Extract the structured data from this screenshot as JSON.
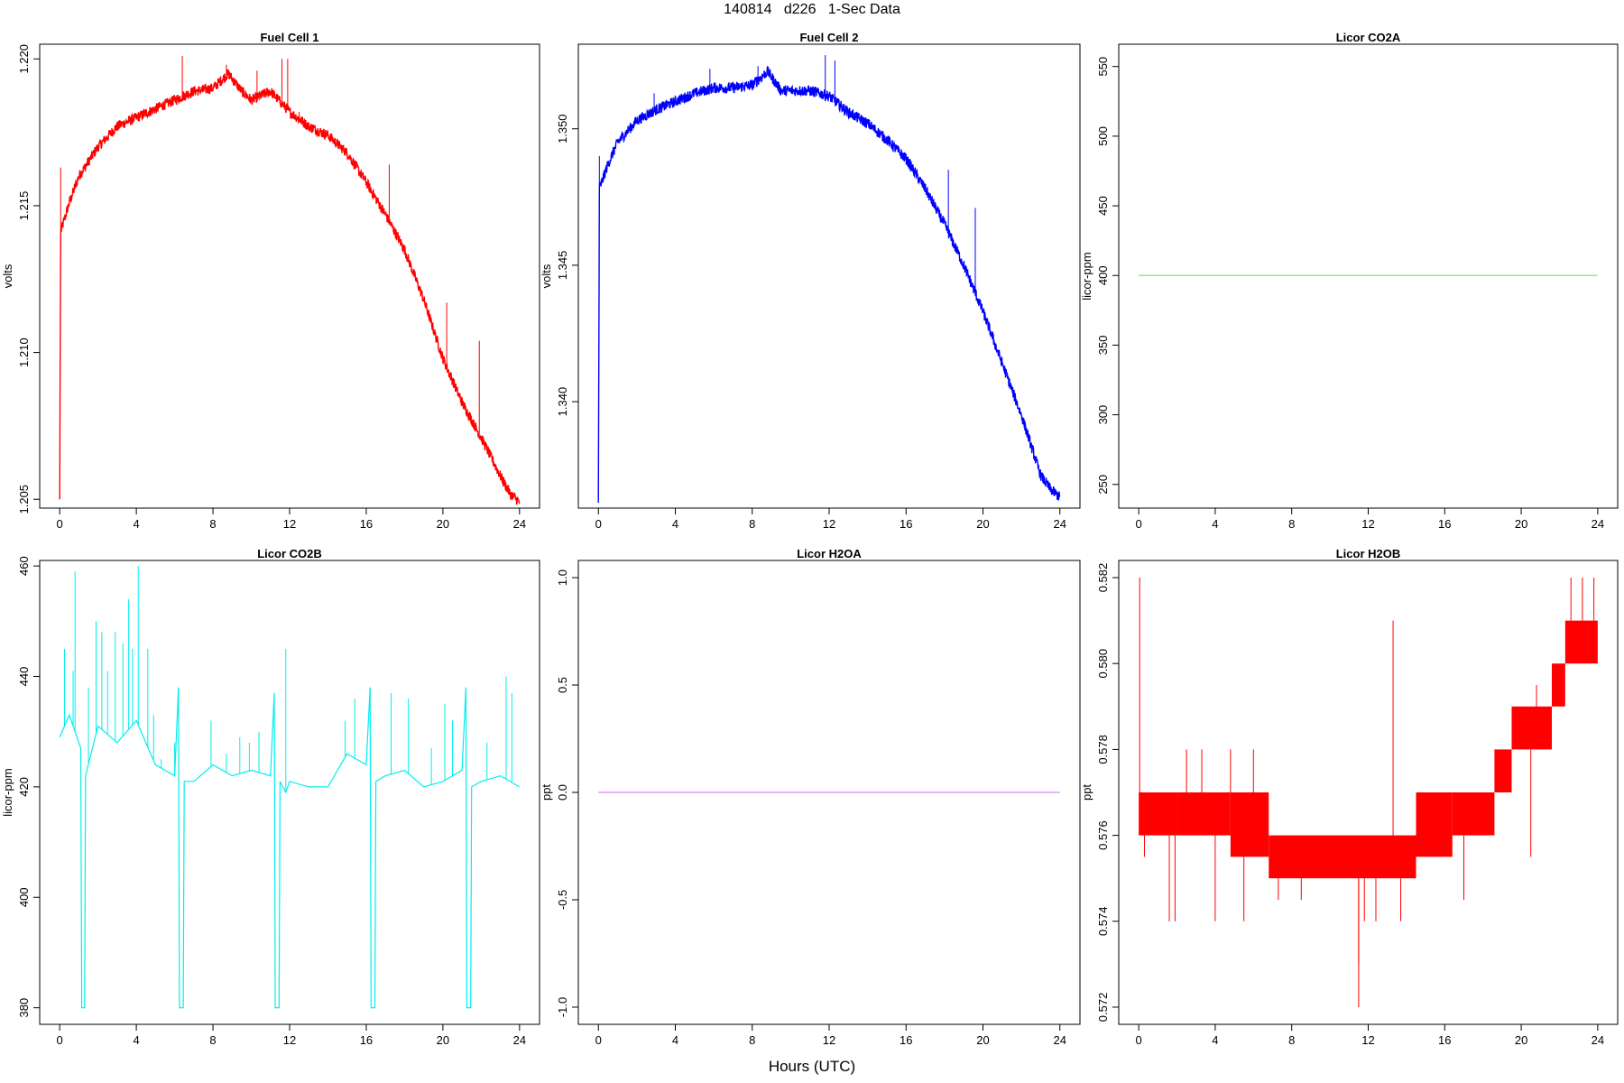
{
  "figure": {
    "title": "140814   d226   1-Sec Data",
    "xlabel": "Hours (UTC)"
  },
  "chart_data": [
    {
      "type": "line",
      "title": "Fuel Cell 1",
      "xlabel": "",
      "ylabel": "volts",
      "color": "#ff0000",
      "xlim": [
        0,
        24
      ],
      "ylim": [
        1.2047,
        1.2205
      ],
      "xticks": [
        0,
        4,
        8,
        12,
        16,
        20,
        24
      ],
      "yticks": [
        1.205,
        1.21,
        1.215,
        1.22
      ],
      "ytick_labels": [
        "1.205",
        "1.210",
        "1.215",
        "1.220"
      ],
      "noise": 0.00018,
      "spikes": [
        [
          0.0,
          1.205
        ],
        [
          0.05,
          1.2163
        ],
        [
          6.4,
          1.2201
        ],
        [
          8.7,
          1.2198
        ],
        [
          10.3,
          1.2196
        ],
        [
          11.6,
          1.22
        ],
        [
          11.9,
          1.22
        ],
        [
          12.5,
          1.2182
        ],
        [
          17.2,
          1.2164
        ],
        [
          20.2,
          1.2117
        ],
        [
          21.9,
          1.2104
        ]
      ],
      "x": [
        0,
        0.05,
        0.5,
        1,
        2,
        3,
        4,
        5,
        6,
        7,
        8,
        8.8,
        9.5,
        10,
        11,
        12,
        13,
        14,
        15,
        16,
        17,
        18,
        19,
        20,
        21,
        22,
        23,
        23.5,
        24
      ],
      "y": [
        1.205,
        1.2141,
        1.2151,
        1.216,
        1.217,
        1.2177,
        1.218,
        1.2183,
        1.2186,
        1.2189,
        1.219,
        1.2195,
        1.2189,
        1.2186,
        1.2189,
        1.2182,
        1.2177,
        1.2174,
        1.2168,
        1.2158,
        1.2147,
        1.2135,
        1.2118,
        1.2098,
        1.2083,
        1.2071,
        1.2058,
        1.2052,
        1.2049
      ]
    },
    {
      "type": "line",
      "title": "Fuel Cell 2",
      "xlabel": "",
      "ylabel": "volts",
      "color": "#0000ff",
      "xlim": [
        0,
        24
      ],
      "ylim": [
        1.3361,
        1.3531
      ],
      "xticks": [
        0,
        4,
        8,
        12,
        16,
        20,
        24
      ],
      "yticks": [
        1.34,
        1.345,
        1.35
      ],
      "ytick_labels": [
        "1.340",
        "1.345",
        "1.350"
      ],
      "noise": 0.0002,
      "spikes": [
        [
          0.0,
          1.3363
        ],
        [
          0.05,
          1.349
        ],
        [
          2.9,
          1.3513
        ],
        [
          5.8,
          1.3522
        ],
        [
          8.3,
          1.3523
        ],
        [
          11.8,
          1.3527
        ],
        [
          12.3,
          1.3525
        ],
        [
          18.2,
          1.3485
        ],
        [
          19.6,
          1.3471
        ]
      ],
      "x": [
        0,
        0.05,
        0.5,
        1,
        2,
        3,
        4,
        5,
        6,
        7,
        8,
        8.8,
        9.5,
        10,
        11,
        12,
        13,
        14,
        15,
        16,
        17,
        18,
        19,
        20,
        21,
        22,
        23,
        23.5,
        24
      ],
      "y": [
        1.3363,
        1.3478,
        1.3487,
        1.3495,
        1.3503,
        1.3507,
        1.351,
        1.3513,
        1.3515,
        1.3515,
        1.3516,
        1.3521,
        1.3514,
        1.3514,
        1.3514,
        1.3512,
        1.3506,
        1.3502,
        1.3496,
        1.3489,
        1.3478,
        1.3465,
        1.345,
        1.3433,
        1.3414,
        1.3395,
        1.3373,
        1.3368,
        1.3365
      ]
    },
    {
      "type": "line",
      "title": "Licor CO2A",
      "xlabel": "",
      "ylabel": "licor-ppm",
      "color": "#66ee66",
      "xlim": [
        0,
        24
      ],
      "ylim": [
        233,
        566
      ],
      "xticks": [
        0,
        4,
        8,
        12,
        16,
        20,
        24
      ],
      "yticks": [
        250,
        300,
        350,
        400,
        450,
        500,
        550
      ],
      "ytick_labels": [
        "250",
        "300",
        "350",
        "400",
        "450",
        "500",
        "550"
      ],
      "noise": 0,
      "spikes": [],
      "x": [
        0,
        24
      ],
      "y": [
        400,
        400
      ]
    },
    {
      "type": "line",
      "title": "Licor CO2B",
      "xlabel": "",
      "ylabel": "licor-ppm",
      "color": "#00eeee",
      "xlim": [
        0,
        24
      ],
      "ylim": [
        377,
        461
      ],
      "xticks": [
        0,
        4,
        8,
        12,
        16,
        20,
        24
      ],
      "yticks": [
        380,
        400,
        420,
        440,
        460
      ],
      "ytick_labels": [
        "380",
        "400",
        "420",
        "440",
        "460"
      ],
      "noise": 0,
      "spikes": [
        [
          0.25,
          445
        ],
        [
          0.7,
          441
        ],
        [
          0.8,
          459
        ],
        [
          1.5,
          438
        ],
        [
          1.9,
          450
        ],
        [
          2.2,
          448
        ],
        [
          2.5,
          441
        ],
        [
          2.9,
          448
        ],
        [
          3.3,
          446
        ],
        [
          3.6,
          454
        ],
        [
          3.8,
          445
        ],
        [
          4.1,
          460
        ],
        [
          4.6,
          445
        ],
        [
          4.9,
          433
        ],
        [
          5.3,
          425
        ],
        [
          6.0,
          428
        ],
        [
          7.9,
          432
        ],
        [
          8.7,
          426
        ],
        [
          9.4,
          429
        ],
        [
          9.9,
          428
        ],
        [
          10.4,
          430
        ],
        [
          11.8,
          445
        ],
        [
          14.9,
          432
        ],
        [
          15.4,
          436
        ],
        [
          16.2,
          436
        ],
        [
          17.3,
          437
        ],
        [
          18.2,
          436
        ],
        [
          19.4,
          427
        ],
        [
          20.1,
          435
        ],
        [
          20.5,
          432
        ],
        [
          22.3,
          428
        ],
        [
          23.3,
          440
        ],
        [
          23.6,
          437
        ]
      ],
      "x": [
        0,
        0.5,
        1.0,
        1.1,
        1.15,
        1.3,
        1.35,
        2.0,
        3.0,
        4.0,
        5.0,
        6.0,
        6.2,
        6.25,
        6.45,
        6.5,
        7.0,
        8.0,
        9.0,
        10.0,
        11.0,
        11.2,
        11.25,
        11.45,
        11.5,
        11.8,
        12.0,
        13.0,
        14.0,
        15.0,
        16.0,
        16.2,
        16.25,
        16.45,
        16.5,
        17.0,
        18.0,
        19.0,
        20.0,
        21.0,
        21.2,
        21.25,
        21.45,
        21.5,
        22.0,
        23.0,
        24.0
      ],
      "y": [
        429,
        433,
        428,
        427,
        380,
        380,
        422,
        431,
        428,
        432,
        424,
        422,
        438,
        380,
        380,
        421,
        421,
        424,
        422,
        423,
        422,
        437,
        380,
        380,
        421,
        419,
        421,
        420,
        420,
        426,
        424,
        438,
        380,
        380,
        421,
        422,
        423,
        420,
        421,
        423,
        438,
        380,
        380,
        420,
        421,
        422,
        420
      ]
    },
    {
      "type": "line",
      "title": "Licor H2OA",
      "xlabel": "",
      "ylabel": "ppt",
      "color": "#dd88ee",
      "xlim": [
        0,
        24
      ],
      "ylim": [
        -1.08,
        1.08
      ],
      "xticks": [
        0,
        4,
        8,
        12,
        16,
        20,
        24
      ],
      "yticks": [
        -1,
        -0.5,
        0,
        0.5,
        1
      ],
      "ytick_labels": [
        "-1.0",
        "-0.5",
        "0.0",
        "0.5",
        "1.0"
      ],
      "noise": 0,
      "spikes": [],
      "x": [
        0,
        24
      ],
      "y": [
        0,
        0
      ]
    },
    {
      "type": "area",
      "title": "Licor H2OB",
      "xlabel": "",
      "ylabel": "ppt",
      "color": "#ff0000",
      "xlim": [
        0,
        24
      ],
      "ylim": [
        0.5716,
        0.5824
      ],
      "xticks": [
        0,
        4,
        8,
        12,
        16,
        20,
        24
      ],
      "yticks": [
        0.572,
        0.574,
        0.576,
        0.578,
        0.58,
        0.582
      ],
      "ytick_labels": [
        "0.572",
        "0.574",
        "0.576",
        "0.578",
        "0.580",
        "0.582"
      ],
      "bands": [
        {
          "x0": 0.0,
          "x1": 2.0,
          "lo": 0.576,
          "hi": 0.577
        },
        {
          "x0": 2.0,
          "x1": 4.8,
          "lo": 0.576,
          "hi": 0.577
        },
        {
          "x0": 4.8,
          "x1": 6.8,
          "lo": 0.5755,
          "hi": 0.577
        },
        {
          "x0": 6.8,
          "x1": 14.5,
          "lo": 0.575,
          "hi": 0.576
        },
        {
          "x0": 14.5,
          "x1": 16.4,
          "lo": 0.5755,
          "hi": 0.577
        },
        {
          "x0": 16.4,
          "x1": 18.6,
          "lo": 0.576,
          "hi": 0.577
        },
        {
          "x0": 18.6,
          "x1": 19.5,
          "lo": 0.577,
          "hi": 0.578
        },
        {
          "x0": 19.5,
          "x1": 21.6,
          "lo": 0.578,
          "hi": 0.579
        },
        {
          "x0": 21.6,
          "x1": 22.3,
          "lo": 0.579,
          "hi": 0.58
        },
        {
          "x0": 22.3,
          "x1": 24.0,
          "lo": 0.58,
          "hi": 0.581
        }
      ],
      "spikes": [
        [
          0.05,
          0.582
        ],
        [
          0.3,
          0.5755
        ],
        [
          1.6,
          0.574
        ],
        [
          1.9,
          0.574
        ],
        [
          2.5,
          0.578
        ],
        [
          3.3,
          0.578
        ],
        [
          4.0,
          0.574
        ],
        [
          4.8,
          0.578
        ],
        [
          5.5,
          0.574
        ],
        [
          6.0,
          0.578
        ],
        [
          7.3,
          0.5745
        ],
        [
          8.5,
          0.5745
        ],
        [
          11.5,
          0.573
        ],
        [
          11.5,
          0.572
        ],
        [
          11.8,
          0.574
        ],
        [
          12.4,
          0.574
        ],
        [
          13.3,
          0.581
        ],
        [
          13.7,
          0.574
        ],
        [
          17.0,
          0.5745
        ],
        [
          20.5,
          0.5755
        ],
        [
          20.8,
          0.5795
        ],
        [
          22.6,
          0.582
        ],
        [
          23.2,
          0.582
        ],
        [
          23.8,
          0.582
        ]
      ],
      "x": [],
      "y": []
    }
  ]
}
